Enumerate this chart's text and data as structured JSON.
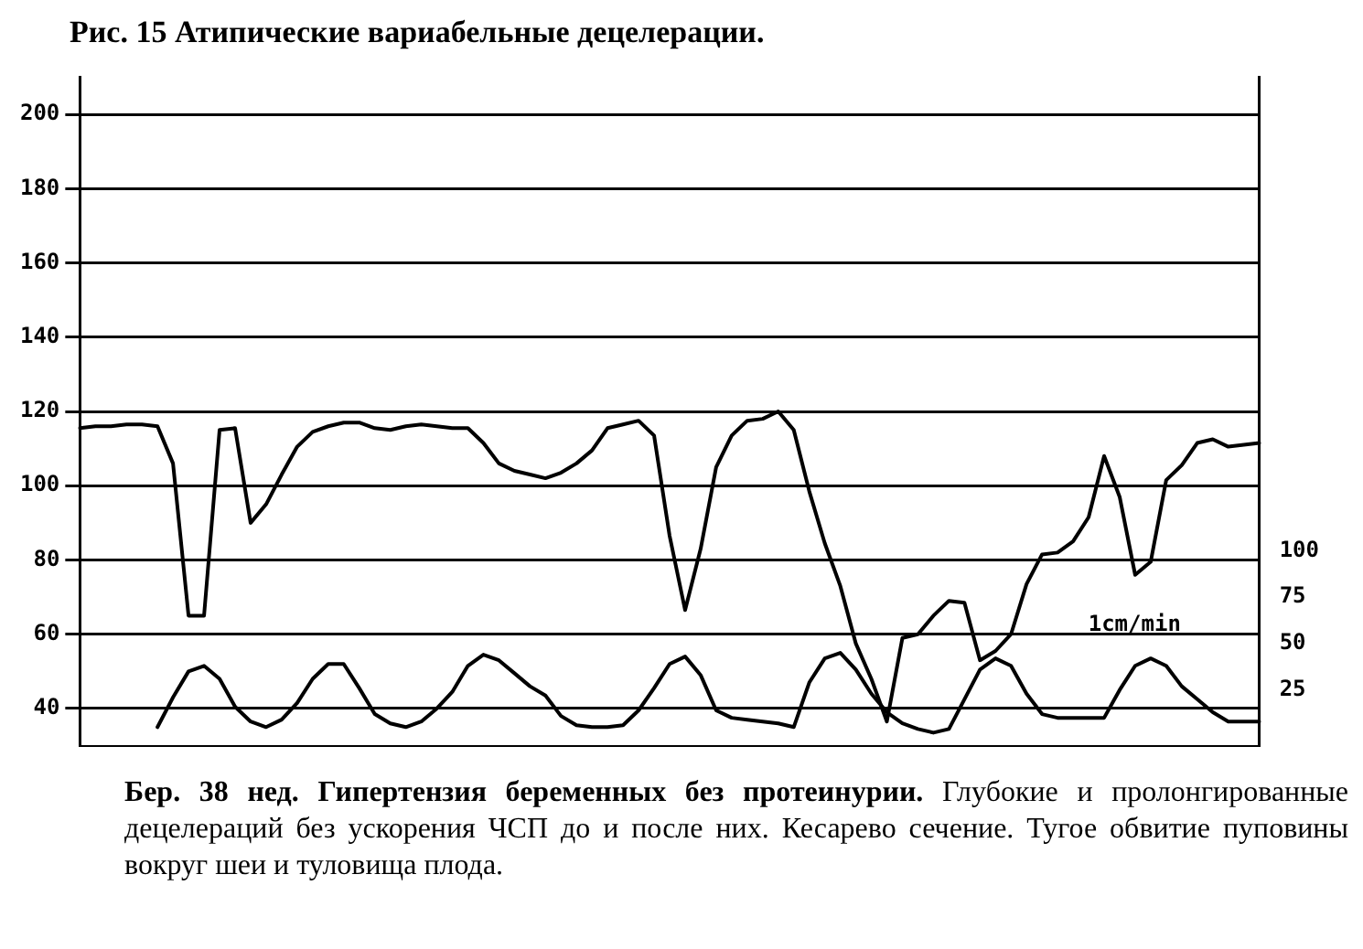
{
  "chart_data": {
    "type": "line",
    "title": "Рис. 15 Атипические вариабельные децелерации.",
    "annotations": [
      "1cm/min",
      "Бер. 38 нед. Гипертензия беременных без протеинурии.",
      "Глубокие и пролонгированные децелераций без ускорения ЧСП до и после них. Кесарево сечение. Тугое обвитие пуповины вокруг шеи и туловища плода."
    ],
    "categories": [
      null,
      null,
      null,
      null,
      null,
      null,
      null,
      null,
      null,
      null,
      null,
      null,
      null,
      null,
      null,
      null,
      null,
      null,
      null,
      null,
      null,
      null,
      null,
      null,
      null,
      null,
      null,
      null,
      null,
      null,
      null,
      null,
      null,
      null,
      null,
      null,
      null,
      null,
      null,
      null,
      null,
      null,
      null,
      null,
      null,
      null,
      null,
      null,
      null,
      null,
      null,
      null,
      null,
      null,
      null,
      null,
      null,
      null,
      null,
      null,
      null,
      null,
      null,
      null,
      null,
      null,
      null,
      null,
      null,
      null,
      null,
      null,
      null,
      null,
      null,
      null,
      null
    ],
    "series": [
      {
        "color": "#000000",
        "values": [
          115.5,
          116,
          116,
          116.5,
          116.5,
          116,
          106,
          65,
          65,
          115,
          115.5,
          90,
          95,
          103,
          110.5,
          114.5,
          116,
          117,
          117,
          115.5,
          115,
          116,
          116.5,
          116,
          115.5,
          115.5,
          111.5,
          106,
          104,
          103,
          102,
          103.5,
          106,
          109.5,
          115.5,
          116.5,
          117.5,
          113.5,
          86.5,
          66.5,
          83,
          105,
          113.5,
          117.5,
          118,
          120,
          115,
          98.5,
          84.5,
          73,
          57.5,
          48,
          36.5,
          59,
          60,
          65,
          69,
          68.5,
          53,
          55.5,
          60,
          73.5,
          81.5,
          82,
          85,
          91.5,
          108,
          97,
          76,
          79.5,
          101.5,
          105.5,
          111.5,
          112.5,
          110.5,
          111,
          111.5
        ]
      },
      {
        "color": "#000000",
        "axis": "y2",
        "values": [
          null,
          null,
          null,
          null,
          null,
          5,
          21,
          35,
          38,
          31,
          16,
          8,
          5,
          9,
          18,
          31,
          39,
          39,
          26,
          12,
          7,
          5,
          8,
          15,
          24,
          38,
          44,
          41,
          34,
          27,
          22,
          11,
          6,
          5,
          5,
          6,
          14,
          26,
          39,
          43,
          33,
          14,
          10,
          9,
          8,
          7,
          5,
          29,
          42,
          45,
          36,
          23,
          13,
          7,
          4,
          2,
          4,
          20,
          36,
          42,
          38,
          23,
          12,
          10,
          10,
          10,
          10,
          25,
          38,
          42,
          38,
          27,
          20,
          13,
          8,
          8,
          8
        ]
      }
    ],
    "ylim": [
      30,
      210
    ],
    "yticks": [
      40,
      60,
      80,
      100,
      120,
      140,
      160,
      180,
      200
    ],
    "y2lim": [
      -5,
      355
    ],
    "y2ticks": [
      25,
      50,
      75,
      100
    ],
    "grid": "y",
    "legend": false,
    "marker": "none",
    "line_style": "solid"
  }
}
